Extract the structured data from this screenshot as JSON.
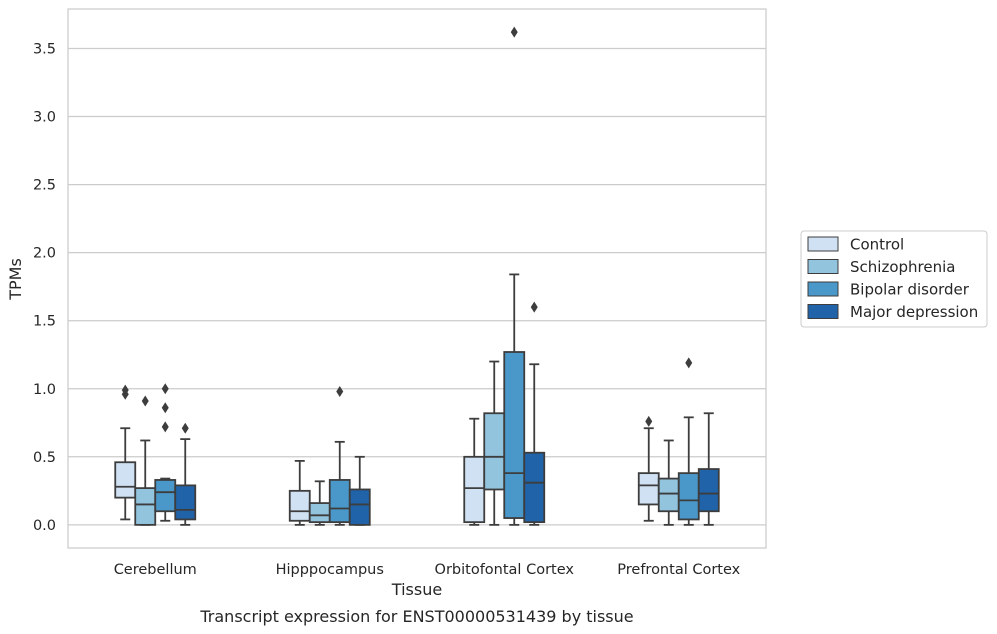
{
  "chart_data": {
    "type": "box",
    "title": "",
    "caption": "Transcript expression for ENST00000531439 by tissue",
    "xlabel": "Tissue",
    "ylabel": "TPMs",
    "ylim": [
      -0.17,
      3.79
    ],
    "yticks": [
      0.0,
      0.5,
      1.0,
      1.5,
      2.0,
      2.5,
      3.0,
      3.5
    ],
    "ytick_labels": [
      "0.0",
      "0.5",
      "1.0",
      "1.5",
      "2.0",
      "2.5",
      "3.0",
      "3.5"
    ],
    "grid": "horizontal",
    "legend_position": "right",
    "categories": [
      "Cerebellum",
      "Hipppocampus",
      "Orbitofontal Cortex",
      "Prefrontal Cortex"
    ],
    "series": [
      {
        "name": "Control",
        "color": "#cfe1f2",
        "boxes": [
          {
            "whisker_low": 0.04,
            "q1": 0.2,
            "median": 0.28,
            "q3": 0.46,
            "whisker_high": 0.71,
            "outliers": [
              0.96,
              0.99
            ]
          },
          {
            "whisker_low": 0.0,
            "q1": 0.03,
            "median": 0.1,
            "q3": 0.25,
            "whisker_high": 0.47,
            "outliers": []
          },
          {
            "whisker_low": 0.0,
            "q1": 0.02,
            "median": 0.27,
            "q3": 0.5,
            "whisker_high": 0.78,
            "outliers": []
          },
          {
            "whisker_low": 0.03,
            "q1": 0.15,
            "median": 0.29,
            "q3": 0.38,
            "whisker_high": 0.71,
            "outliers": [
              0.76
            ]
          }
        ]
      },
      {
        "name": "Schizophrenia",
        "color": "#93c4de",
        "boxes": [
          {
            "whisker_low": 0.0,
            "q1": 0.0,
            "median": 0.15,
            "q3": 0.27,
            "whisker_high": 0.62,
            "outliers": [
              0.91
            ]
          },
          {
            "whisker_low": 0.0,
            "q1": 0.02,
            "median": 0.07,
            "q3": 0.16,
            "whisker_high": 0.32,
            "outliers": []
          },
          {
            "whisker_low": 0.0,
            "q1": 0.26,
            "median": 0.5,
            "q3": 0.82,
            "whisker_high": 1.2,
            "outliers": []
          },
          {
            "whisker_low": 0.0,
            "q1": 0.1,
            "median": 0.23,
            "q3": 0.34,
            "whisker_high": 0.62,
            "outliers": []
          }
        ]
      },
      {
        "name": "Bipolar disorder",
        "color": "#4a98c9",
        "boxes": [
          {
            "whisker_low": 0.03,
            "q1": 0.1,
            "median": 0.24,
            "q3": 0.33,
            "whisker_high": 0.34,
            "outliers": [
              0.72,
              0.86,
              1.0
            ]
          },
          {
            "whisker_low": 0.0,
            "q1": 0.02,
            "median": 0.12,
            "q3": 0.33,
            "whisker_high": 0.61,
            "outliers": [
              0.98
            ]
          },
          {
            "whisker_low": 0.0,
            "q1": 0.05,
            "median": 0.38,
            "q3": 1.27,
            "whisker_high": 1.84,
            "outliers": [
              3.62
            ]
          },
          {
            "whisker_low": 0.0,
            "q1": 0.04,
            "median": 0.18,
            "q3": 0.38,
            "whisker_high": 0.79,
            "outliers": [
              1.19
            ]
          }
        ]
      },
      {
        "name": "Major depression",
        "color": "#2163a8",
        "boxes": [
          {
            "whisker_low": 0.0,
            "q1": 0.04,
            "median": 0.11,
            "q3": 0.29,
            "whisker_high": 0.63,
            "outliers": [
              0.71
            ]
          },
          {
            "whisker_low": 0.0,
            "q1": 0.0,
            "median": 0.15,
            "q3": 0.26,
            "whisker_high": 0.5,
            "outliers": []
          },
          {
            "whisker_low": 0.0,
            "q1": 0.02,
            "median": 0.31,
            "q3": 0.53,
            "whisker_high": 1.18,
            "outliers": [
              1.6
            ]
          },
          {
            "whisker_low": 0.0,
            "q1": 0.1,
            "median": 0.23,
            "q3": 0.41,
            "whisker_high": 0.82,
            "outliers": []
          }
        ]
      }
    ]
  }
}
